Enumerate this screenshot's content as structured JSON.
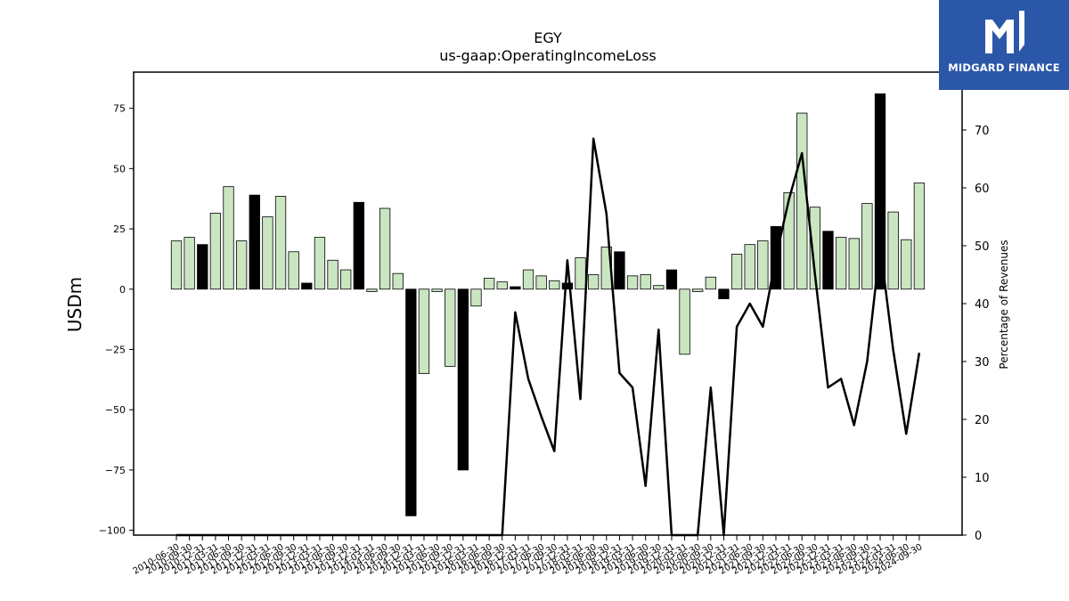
{
  "brand": {
    "name": "MIDGARD FINANCE",
    "logo_icon": "midgard-m-logo-icon",
    "color": "#2b57a8"
  },
  "chart_data": {
    "type": "bar",
    "title": "EGY",
    "subtitle": "us-gaap:OperatingIncomeLoss",
    "ylabel": "USDm",
    "ylabel_right": "Percentage of Revenues",
    "ylim": [
      -102,
      90
    ],
    "ylim_right": [
      0,
      80
    ],
    "yticks": [
      -100,
      -75,
      -50,
      -25,
      0,
      25,
      50,
      75
    ],
    "yticks_right": [
      0,
      10,
      20,
      30,
      40,
      50,
      60,
      70
    ],
    "colors": {
      "quarter": "#c9e6c1",
      "annual": "#000000",
      "line": "#000000"
    },
    "categories": [
      "2010-06-30",
      "2010-09-30",
      "2010-12-31",
      "2011-03-31",
      "2011-06-30",
      "2011-09-30",
      "2011-12-31",
      "2012-03-31",
      "2012-06-30",
      "2012-09-30",
      "2012-12-31",
      "2013-03-31",
      "2013-06-30",
      "2013-09-30",
      "2013-12-31",
      "2014-03-31",
      "2014-06-30",
      "2014-09-30",
      "2014-12-31",
      "2015-03-31",
      "2015-06-30",
      "2015-09-30",
      "2015-12-31",
      "2016-03-31",
      "2016-06-30",
      "2016-09-30",
      "2016-12-31",
      "2017-03-31",
      "2017-06-30",
      "2017-09-30",
      "2017-12-31",
      "2018-03-31",
      "2018-06-30",
      "2018-09-30",
      "2018-12-31",
      "2019-03-31",
      "2019-06-30",
      "2019-09-30",
      "2019-12-31",
      "2020-03-31",
      "2020-06-30",
      "2020-09-30",
      "2020-12-31",
      "2021-03-31",
      "2021-06-30",
      "2021-09-30",
      "2021-12-31",
      "2022-03-31",
      "2022-06-30",
      "2022-09-30",
      "2022-12-31",
      "2023-03-31",
      "2023-06-30",
      "2023-09-30",
      "2023-12-31",
      "2024-03-31",
      "2024-06-30",
      "2024-09-30"
    ],
    "series": [
      {
        "type": "bar",
        "values": [
          20,
          21.5,
          18.5,
          31.5,
          42.5,
          20,
          39,
          30,
          38.5,
          15.5,
          2.5,
          21.5,
          12,
          8,
          36,
          -1,
          33.5,
          6.5,
          -94,
          -35,
          -1,
          -32,
          -75,
          -7,
          4.5,
          3,
          1,
          8,
          5.5,
          3.5,
          2.5,
          13,
          6,
          17.5,
          15.5,
          5.5,
          6,
          1.5,
          8,
          -27,
          -1,
          5,
          -4,
          14.5,
          18.5,
          20,
          26,
          40,
          73,
          34,
          24,
          21.5,
          21,
          35.5,
          81,
          32,
          20.5,
          44
        ],
        "annual": [
          false,
          false,
          true,
          false,
          false,
          false,
          true,
          false,
          false,
          false,
          true,
          false,
          false,
          false,
          true,
          false,
          false,
          false,
          true,
          false,
          false,
          false,
          true,
          false,
          false,
          false,
          true,
          false,
          false,
          false,
          true,
          false,
          false,
          false,
          true,
          false,
          false,
          false,
          true,
          false,
          false,
          false,
          true,
          false,
          false,
          false,
          true,
          false,
          false,
          false,
          true,
          false,
          false,
          false,
          true,
          false,
          false,
          false
        ]
      },
      {
        "type": "line",
        "axis": "right",
        "values": [
          0,
          0,
          0,
          0,
          0,
          0,
          0,
          0,
          0,
          0,
          0,
          0,
          0,
          0,
          0,
          0,
          0,
          0,
          0,
          0,
          0,
          0,
          0,
          0,
          0,
          0,
          38.5,
          27,
          20.5,
          14.5,
          47.5,
          23.5,
          68.5,
          55.5,
          28,
          25.5,
          8.5,
          35.5,
          0,
          0,
          0,
          25.5,
          0,
          36,
          40,
          36,
          48,
          58,
          66,
          45,
          25.5,
          27,
          19,
          30,
          50,
          32,
          17.5,
          31.5
        ]
      }
    ]
  }
}
